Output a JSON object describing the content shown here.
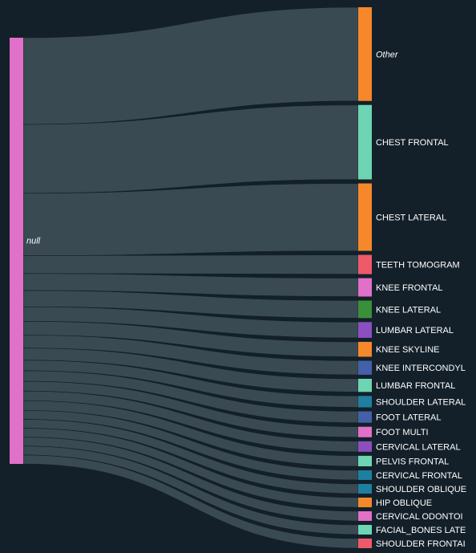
{
  "chart_data": {
    "type": "sankey",
    "source": {
      "name": "null",
      "color": "#e070c8"
    },
    "link_color": "#3a4a52",
    "targets": [
      {
        "name": "Other",
        "value": 107,
        "color": "#f5882b",
        "italic": true
      },
      {
        "name": "CHEST FRONTAL",
        "value": 85,
        "color": "#6dd5b3"
      },
      {
        "name": "CHEST LATERAL",
        "value": 77,
        "color": "#f5882b"
      },
      {
        "name": "TEETH TOMOGRAM",
        "value": 22,
        "color": "#ef5a6a"
      },
      {
        "name": "KNEE FRONTAL",
        "value": 21,
        "color": "#e070c8"
      },
      {
        "name": "KNEE LATERAL",
        "value": 20,
        "color": "#3a8f3a"
      },
      {
        "name": "LUMBAR LATERAL",
        "value": 18,
        "color": "#8b4fc0"
      },
      {
        "name": "KNEE SKYLINE",
        "value": 17,
        "color": "#f5882b"
      },
      {
        "name": "KNEE INTERCONDYL",
        "value": 16,
        "color": "#4460a8"
      },
      {
        "name": "LUMBAR FRONTAL",
        "value": 15,
        "color": "#6dd5b3"
      },
      {
        "name": "SHOULDER LATERAL",
        "value": 13,
        "color": "#1f7fa0"
      },
      {
        "name": "FOOT LATERAL",
        "value": 13,
        "color": "#4460a8"
      },
      {
        "name": "FOOT MULTI",
        "value": 12,
        "color": "#e070c8"
      },
      {
        "name": "CERVICAL LATERAL",
        "value": 12,
        "color": "#8b4fc0"
      },
      {
        "name": "PELVIS FRONTAL",
        "value": 12,
        "color": "#6dd5b3"
      },
      {
        "name": "CERVICAL FRONTAL",
        "value": 11,
        "color": "#1f7fa0"
      },
      {
        "name": "SHOULDER OBLIQUE",
        "value": 11,
        "color": "#1f7fa0"
      },
      {
        "name": "HIP OBLIQUE",
        "value": 11,
        "color": "#f5882b"
      },
      {
        "name": "CERVICAL ODONTOI",
        "value": 11,
        "color": "#e070c8"
      },
      {
        "name": "FACIAL_BONES LATE",
        "value": 11,
        "color": "#6dd5b3"
      },
      {
        "name": "SHOULDER FRONTAI",
        "value": 11,
        "color": "#ef5a6a"
      }
    ]
  }
}
